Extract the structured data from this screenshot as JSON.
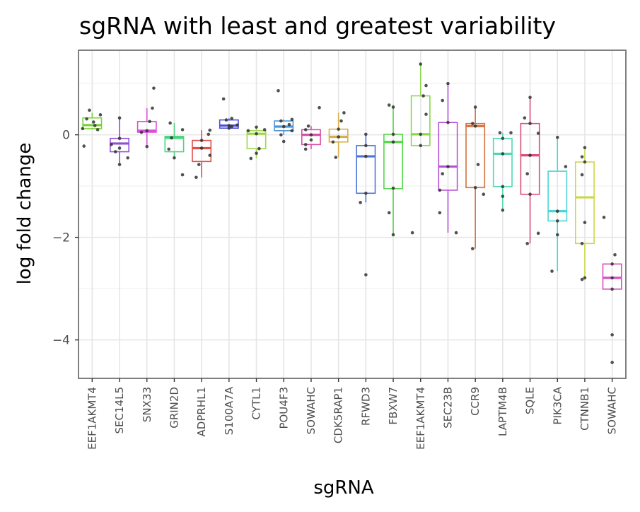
{
  "chart_data": {
    "type": "box",
    "title": "sgRNA with least and greatest variability",
    "xlabel": "sgRNA",
    "ylabel": "log fold change",
    "ylim": [
      -4.75,
      1.65
    ],
    "yticks": [
      0,
      -2,
      -4
    ],
    "ytick_labels": [
      "0",
      "−2",
      "−4"
    ],
    "y_minor_gridlines": [
      1,
      -1,
      -3
    ],
    "grid": true,
    "legend": "none",
    "categories": [
      "EEF1AKMT4",
      "SEC14L5",
      "SNX33",
      "GRIN2D",
      "ADPRHL1",
      "S100A7A",
      "CYTL1",
      "POU4F3",
      "SOWAHC",
      "CDK5RAP1",
      "RFWD3",
      "FBXW7",
      "EEF1AKMT4",
      "SEC23B",
      "CCR9",
      "LAPTM4B",
      "SQLE",
      "PIK3CA",
      "CTNNB1",
      "SOWAHC"
    ],
    "colors": [
      "#7cd13a",
      "#8f52d6",
      "#d84fd8",
      "#4cd682",
      "#e0504a",
      "#4e4fd8",
      "#9ed84a",
      "#4c96d8",
      "#d94fa6",
      "#d8b04a",
      "#4f72d8",
      "#54d84a",
      "#8ad84a",
      "#b84fd8",
      "#d8723e",
      "#4fd8b0",
      "#d84f78",
      "#4fd4d4",
      "#cad84a",
      "#d84fbc"
    ],
    "boxes": [
      {
        "q1": 0.12,
        "median": 0.19,
        "q3": 0.33,
        "whisker_low": 0.1,
        "whisker_high": 0.43
      },
      {
        "q1": -0.33,
        "median": -0.17,
        "q3": -0.07,
        "whisker_low": -0.58,
        "whisker_high": 0.33
      },
      {
        "q1": 0.05,
        "median": 0.08,
        "q3": 0.26,
        "whisker_low": -0.22,
        "whisker_high": 0.52
      },
      {
        "q1": -0.33,
        "median": -0.06,
        "q3": -0.03,
        "whisker_low": -0.45,
        "whisker_high": 0.23
      },
      {
        "q1": -0.52,
        "median": -0.26,
        "q3": -0.11,
        "whisker_low": -0.83,
        "whisker_high": 0.09
      },
      {
        "q1": 0.13,
        "median": 0.18,
        "q3": 0.29,
        "whisker_low": 0.13,
        "whisker_high": 0.32
      },
      {
        "q1": -0.27,
        "median": 0.02,
        "q3": 0.08,
        "whisker_low": -0.46,
        "whisker_high": 0.15
      },
      {
        "q1": 0.08,
        "median": 0.16,
        "q3": 0.27,
        "whisker_low": 0.0,
        "whisker_high": 0.3
      },
      {
        "q1": -0.19,
        "median": 0.0,
        "q3": 0.1,
        "whisker_low": -0.28,
        "whisker_high": 0.17
      },
      {
        "q1": -0.14,
        "median": -0.04,
        "q3": 0.11,
        "whisker_low": -0.44,
        "whisker_high": 0.43
      },
      {
        "q1": -1.14,
        "median": -0.42,
        "q3": -0.21,
        "whisker_low": -1.32,
        "whisker_high": 0.01
      },
      {
        "q1": -1.05,
        "median": -0.14,
        "q3": 0.01,
        "whisker_low": -1.95,
        "whisker_high": 0.58
      },
      {
        "q1": -0.21,
        "median": 0.01,
        "q3": 0.76,
        "whisker_low": -0.21,
        "whisker_high": 1.38
      },
      {
        "q1": -1.08,
        "median": -0.62,
        "q3": 0.24,
        "whisker_low": -1.91,
        "whisker_high": 1.0
      },
      {
        "q1": -1.03,
        "median": 0.17,
        "q3": 0.22,
        "whisker_low": -2.22,
        "whisker_high": 0.54
      },
      {
        "q1": -1.01,
        "median": -0.37,
        "q3": -0.07,
        "whisker_low": -1.47,
        "whisker_high": 0.04
      },
      {
        "q1": -1.16,
        "median": -0.4,
        "q3": 0.22,
        "whisker_low": -2.12,
        "whisker_high": 0.73
      },
      {
        "q1": -1.68,
        "median": -1.49,
        "q3": -0.71,
        "whisker_low": -2.66,
        "whisker_high": -0.05
      },
      {
        "q1": -2.12,
        "median": -1.22,
        "q3": -0.53,
        "whisker_low": -2.82,
        "whisker_high": -0.25
      },
      {
        "q1": -3.01,
        "median": -2.79,
        "q3": -2.52,
        "whisker_low": -3.01,
        "whisker_high": -2.52
      }
    ],
    "points": [
      [
        -0.22,
        0.18,
        0.25,
        0.39,
        0.48,
        0.31,
        0.1,
        0.12
      ],
      [
        -0.58,
        -0.45,
        -0.26,
        -0.19,
        -0.07,
        0.33,
        -0.33
      ],
      [
        -0.23,
        0.05,
        0.08,
        0.52,
        0.91,
        0.26
      ],
      [
        -0.78,
        -0.45,
        -0.28,
        -0.06,
        0.23,
        0.1
      ],
      [
        -0.83,
        -0.58,
        -0.4,
        -0.26,
        -0.11,
        0.09,
        0.01
      ],
      [
        0.13,
        0.16,
        0.18,
        0.19,
        0.29,
        0.32,
        0.7
      ],
      [
        -0.46,
        -0.36,
        -0.27,
        0.02,
        0.08,
        0.15,
        0.1
      ],
      [
        -0.13,
        0.0,
        0.08,
        0.16,
        0.2,
        0.27,
        0.3,
        0.86
      ],
      [
        -0.28,
        -0.19,
        -0.1,
        0.0,
        0.1,
        0.17,
        0.53
      ],
      [
        -0.44,
        -0.14,
        -0.04,
        0.11,
        0.27,
        0.43
      ],
      [
        -2.73,
        -1.32,
        -1.14,
        -0.42,
        -0.21,
        0.01
      ],
      [
        -1.95,
        -1.52,
        -1.04,
        -0.14,
        0.01,
        0.54,
        0.58
      ],
      [
        -1.91,
        -0.21,
        0.01,
        0.4,
        0.76,
        0.96,
        1.38
      ],
      [
        -1.91,
        -1.52,
        -1.08,
        -0.76,
        -0.62,
        0.24,
        0.67,
        1.0
      ],
      [
        -2.22,
        -1.16,
        -1.03,
        -0.58,
        0.17,
        0.22,
        0.54
      ],
      [
        -1.47,
        -1.2,
        -1.01,
        -0.37,
        -0.07,
        0.04,
        0.04
      ],
      [
        -2.12,
        -1.92,
        -1.16,
        -0.76,
        -0.4,
        0.22,
        0.33,
        0.03,
        0.73
      ],
      [
        -2.66,
        -1.95,
        -1.68,
        -1.49,
        -0.62,
        -0.05
      ],
      [
        -2.82,
        -2.79,
        -2.12,
        -1.71,
        -0.78,
        -0.53,
        -0.43,
        -0.25
      ],
      [
        -4.44,
        -3.9,
        -3.01,
        -2.79,
        -2.52,
        -2.34,
        -1.61
      ]
    ],
    "point_jitter": [
      [
        -0.3,
        0.1,
        0.05,
        0.3,
        -0.1,
        -0.2,
        0.2,
        -0.35
      ],
      [
        0.0,
        0.3,
        0.0,
        -0.3,
        0.0,
        0.0,
        -0.15
      ],
      [
        0.0,
        -0.2,
        0.0,
        0.2,
        0.25,
        0.1
      ],
      [
        0.3,
        0.0,
        -0.2,
        -0.1,
        -0.15,
        0.3
      ],
      [
        -0.2,
        -0.1,
        0.3,
        0.0,
        0.0,
        0.3,
        0.25
      ],
      [
        0.0,
        0.1,
        0.0,
        0.3,
        -0.1,
        0.1,
        -0.2
      ],
      [
        -0.2,
        0.0,
        0.1,
        0.0,
        -0.3,
        0.0,
        0.3
      ],
      [
        0.0,
        -0.1,
        0.3,
        0.0,
        0.2,
        -0.1,
        0.3,
        -0.2
      ],
      [
        -0.2,
        -0.2,
        0.0,
        0.0,
        -0.2,
        -0.1,
        0.3
      ],
      [
        -0.1,
        -0.2,
        0.0,
        0.0,
        0.1,
        0.2
      ],
      [
        0.0,
        -0.2,
        0.0,
        0.0,
        0.0,
        0.0
      ],
      [
        0.0,
        -0.15,
        0.0,
        0.0,
        0.0,
        0.0,
        -0.15
      ],
      [
        -0.3,
        0.0,
        0.0,
        0.2,
        0.1,
        0.2,
        0.0
      ],
      [
        0.3,
        -0.3,
        -0.3,
        -0.2,
        0.0,
        0.0,
        -0.2,
        0.0
      ],
      [
        -0.1,
        0.3,
        0.0,
        0.1,
        0.0,
        -0.1,
        0.0
      ],
      [
        0.0,
        0.0,
        0.0,
        0.0,
        0.0,
        -0.1,
        0.3
      ],
      [
        -0.1,
        0.3,
        0.0,
        -0.1,
        0.0,
        0.0,
        -0.2,
        0.3,
        0.0
      ],
      [
        -0.2,
        0.0,
        0.0,
        0.0,
        0.3,
        0.0
      ],
      [
        -0.1,
        0.0,
        -0.1,
        0.0,
        -0.1,
        0.0,
        -0.1,
        0.0
      ],
      [
        0.0,
        0.0,
        0.0,
        0.0,
        0.0,
        0.1,
        -0.3
      ]
    ]
  }
}
